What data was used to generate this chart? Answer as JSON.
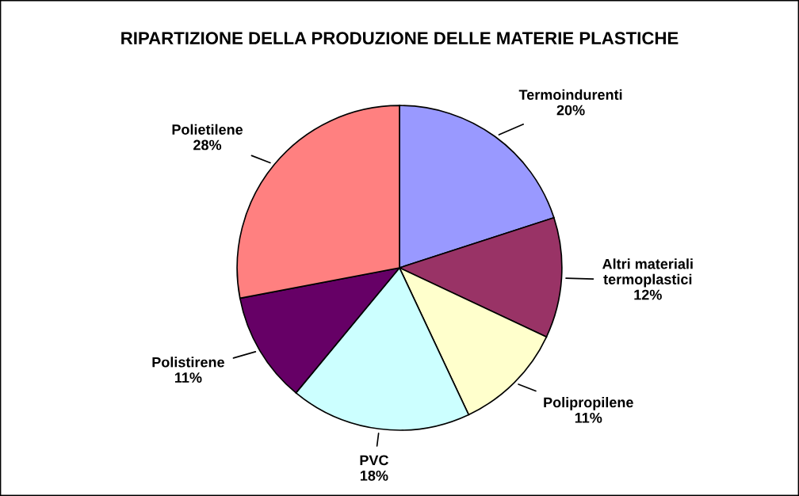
{
  "chart_data": {
    "type": "pie",
    "title": "RIPARTIZIONE DELLA PRODUZIONE DELLE MATERIE PLASTICHE",
    "categories": [
      "Termoindurenti",
      "Altri materiali termoplastici",
      "Polipropilene",
      "PVC",
      "Polistirene",
      "Polietilene"
    ],
    "values": [
      20,
      12,
      11,
      18,
      11,
      28
    ],
    "value_labels": [
      "20%",
      "12%",
      "11%",
      "18%",
      "11%",
      "28%"
    ],
    "colors": [
      "#9999ff",
      "#993366",
      "#ffffcc",
      "#ccffff",
      "#660066",
      "#ff8080"
    ],
    "legend": false
  }
}
